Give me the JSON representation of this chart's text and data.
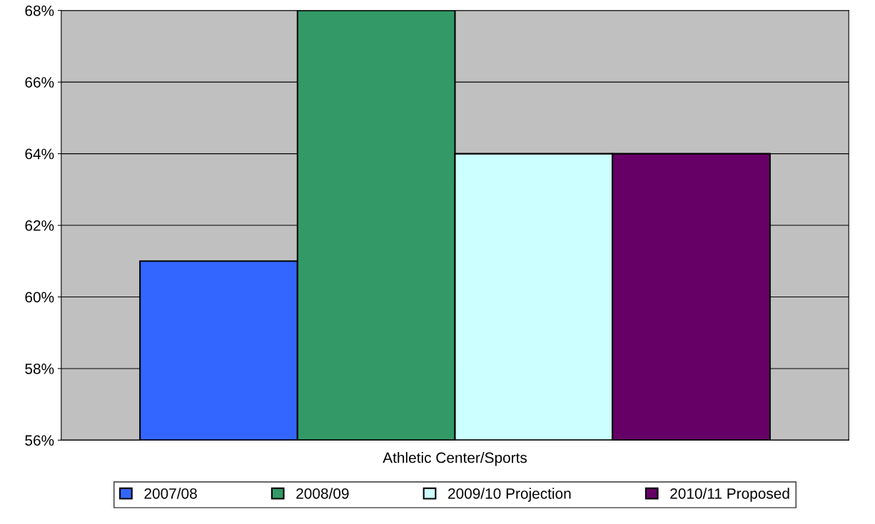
{
  "chart_data": {
    "type": "bar",
    "categories": [
      "Athletic Center/Sports"
    ],
    "series": [
      {
        "name": "2007/08",
        "color": "#3366ff",
        "values": [
          61
        ]
      },
      {
        "name": "2008/09",
        "color": "#339966",
        "values": [
          68
        ]
      },
      {
        "name": "2009/10 Projection",
        "color": "#ccffff",
        "values": [
          64
        ]
      },
      {
        "name": "2010/11 Proposed",
        "color": "#660066",
        "values": [
          64
        ]
      }
    ],
    "ylim": [
      56,
      68
    ],
    "yticks": [
      {
        "value": 56,
        "label": "56%"
      },
      {
        "value": 58,
        "label": "58%"
      },
      {
        "value": 60,
        "label": "60%"
      },
      {
        "value": 62,
        "label": "62%"
      },
      {
        "value": 64,
        "label": "64%"
      },
      {
        "value": 66,
        "label": "66%"
      },
      {
        "value": 68,
        "label": "68%"
      }
    ],
    "grid": "y",
    "legend": "bottom"
  }
}
